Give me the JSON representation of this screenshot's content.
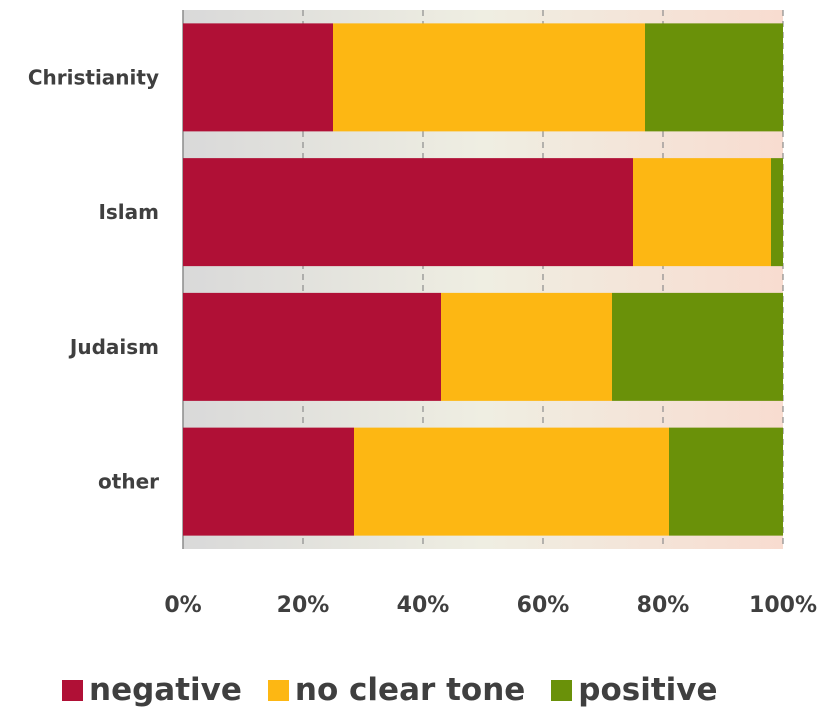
{
  "chart_data": {
    "type": "bar",
    "orientation": "horizontal",
    "stacked": true,
    "normalized": true,
    "title": "",
    "xlabel": "",
    "ylabel": "",
    "xlim": [
      0,
      100
    ],
    "x_ticks": [
      "0%",
      "20%",
      "40%",
      "60%",
      "80%",
      "100%"
    ],
    "categories": [
      "Christianity",
      "Islam",
      "Judaism",
      "other"
    ],
    "series": [
      {
        "name": "negative",
        "color": "#b01036",
        "values": [
          25,
          75,
          43,
          28.5
        ]
      },
      {
        "name": "no clear tone",
        "color": "#fdb713",
        "values": [
          52,
          23,
          28.5,
          52.5
        ]
      },
      {
        "name": "positive",
        "color": "#6a9109",
        "values": [
          23,
          2,
          28.5,
          19
        ]
      }
    ],
    "grid": true,
    "legend_position": "bottom"
  }
}
